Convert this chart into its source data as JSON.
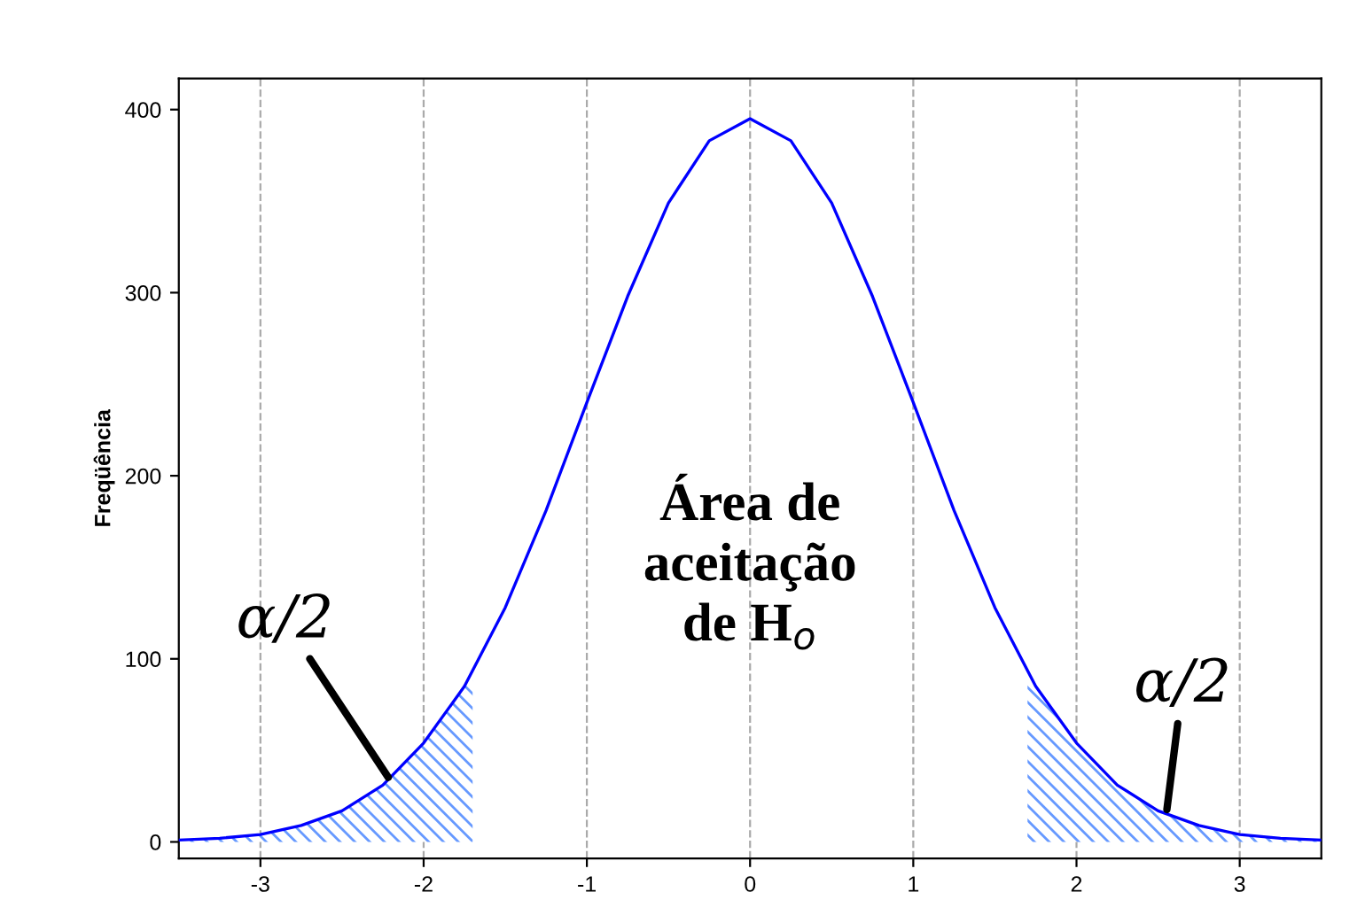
{
  "chart_data": {
    "type": "line",
    "ylabel": "Freqüência",
    "xlim": [
      -3.5,
      3.5
    ],
    "ylim": [
      -9,
      417
    ],
    "xticks": [
      -3,
      -2,
      -1,
      0,
      1,
      2,
      3
    ],
    "yticks": [
      0,
      100,
      200,
      300,
      400
    ],
    "grid": "x",
    "legend": false,
    "marker": "none",
    "line_style": "solid",
    "series": [
      {
        "type": "area",
        "color": "#6699ff",
        "x": [
          -3.5,
          -3.25,
          -3,
          -2.75,
          -2.5,
          -2.25,
          -2,
          -1.75,
          -1.7
        ],
        "values": [
          1,
          2,
          4,
          9,
          17,
          31,
          54,
          85,
          88
        ]
      },
      {
        "type": "area",
        "color": "#6699ff",
        "x": [
          1.7,
          1.75,
          2,
          2.25,
          2.5,
          2.75,
          3,
          3.25,
          3.5
        ],
        "values": [
          88,
          85,
          54,
          31,
          17,
          9,
          4,
          2,
          1
        ]
      },
      {
        "color": "#0000ff",
        "x": [
          -3.5,
          -3.25,
          -3,
          -2.75,
          -2.5,
          -2.25,
          -2,
          -1.75,
          -1.5,
          -1.25,
          -1,
          -0.75,
          -0.5,
          -0.25,
          0,
          0.25,
          0.5,
          0.75,
          1,
          1.25,
          1.5,
          1.75,
          2,
          2.25,
          2.5,
          2.75,
          3,
          3.25,
          3.5
        ],
        "values": [
          1,
          2,
          4,
          9,
          17,
          31,
          54,
          85,
          128,
          181,
          240,
          298,
          349,
          383,
          395,
          383,
          349,
          298,
          240,
          181,
          128,
          85,
          54,
          31,
          17,
          9,
          4,
          2,
          1
        ]
      }
    ],
    "annotations": [
      {
        "text": "α/2",
        "x": -2.2,
        "y": 33
      },
      {
        "text": "α/2",
        "x": 2.55,
        "y": 15
      },
      "Área de\naceitação\nde H$_{o}$"
    ]
  }
}
